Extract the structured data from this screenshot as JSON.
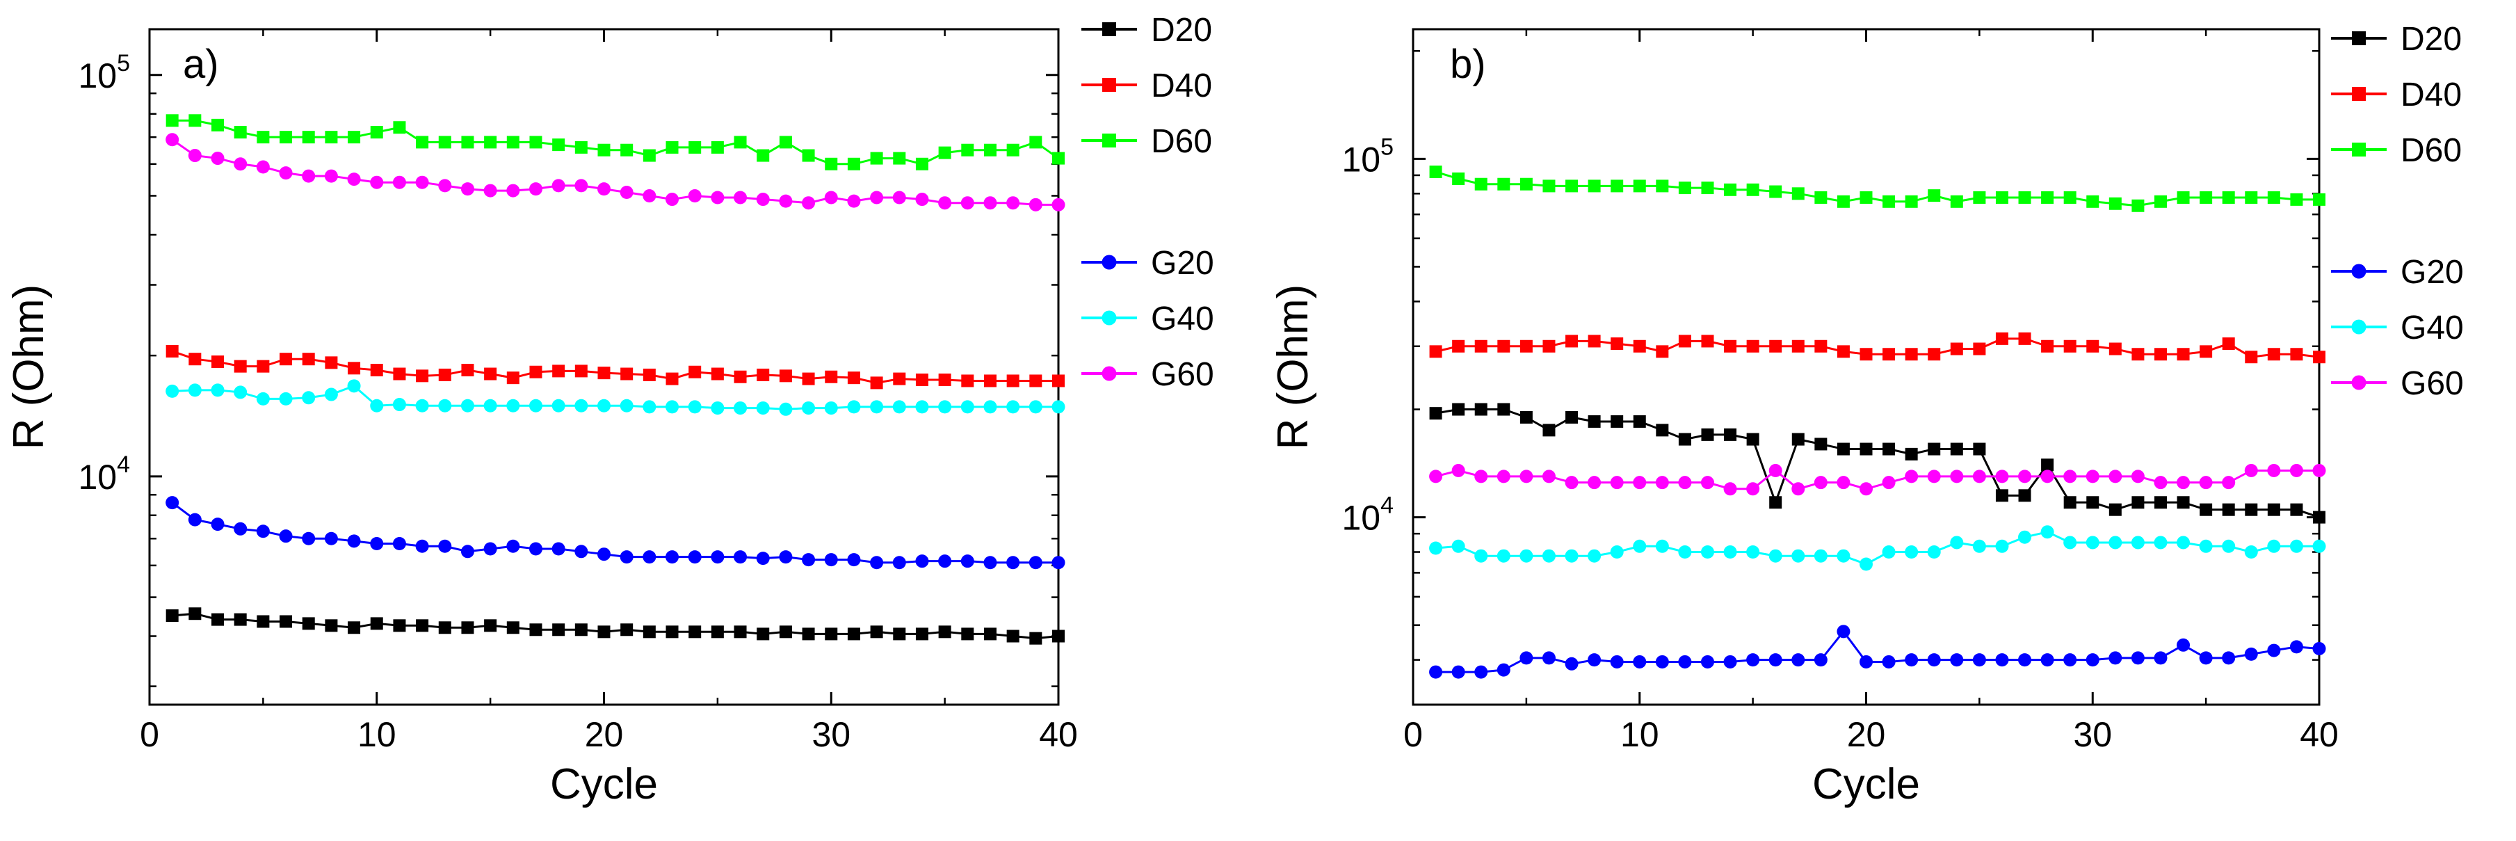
{
  "chart_data": [
    {
      "type": "line",
      "panel_label": "a)",
      "title": "",
      "xlabel": "Cycle",
      "ylabel": "R (Ohm)",
      "yscale": "log",
      "xlim": [
        0,
        40
      ],
      "ylim": [
        2700,
        130000
      ],
      "x_ticks": [
        0,
        10,
        20,
        30,
        40
      ],
      "x_tick_labels": [
        "0",
        "10",
        "20",
        "30",
        "40"
      ],
      "y_ticks": [
        10000,
        100000
      ],
      "y_tick_labels": [
        {
          "base": "10",
          "exp": "4"
        },
        {
          "base": "10",
          "exp": "5"
        }
      ],
      "legend_location": "outside-right",
      "x": [
        1,
        2,
        3,
        4,
        5,
        6,
        7,
        8,
        9,
        10,
        11,
        12,
        13,
        14,
        15,
        16,
        17,
        18,
        19,
        20,
        21,
        22,
        23,
        24,
        25,
        26,
        27,
        28,
        29,
        30,
        31,
        32,
        33,
        34,
        35,
        36,
        37,
        38,
        39,
        40
      ],
      "series": [
        {
          "name": "D20",
          "color": "#000000",
          "marker": "square",
          "values": [
            4500,
            4550,
            4400,
            4400,
            4350,
            4350,
            4300,
            4250,
            4200,
            4300,
            4250,
            4250,
            4200,
            4200,
            4250,
            4200,
            4150,
            4150,
            4150,
            4100,
            4150,
            4100,
            4100,
            4100,
            4100,
            4100,
            4050,
            4100,
            4050,
            4050,
            4050,
            4100,
            4050,
            4050,
            4100,
            4050,
            4050,
            4000,
            3950,
            4000
          ]
        },
        {
          "name": "D40",
          "color": "#ff0000",
          "marker": "square",
          "values": [
            20500,
            19600,
            19300,
            18800,
            18800,
            19600,
            19600,
            19200,
            18600,
            18400,
            18000,
            17800,
            17900,
            18400,
            18000,
            17600,
            18200,
            18300,
            18300,
            18100,
            18000,
            17900,
            17500,
            18200,
            18000,
            17700,
            17900,
            17800,
            17500,
            17700,
            17600,
            17100,
            17500,
            17400,
            17400,
            17300,
            17300,
            17300,
            17300,
            17300
          ]
        },
        {
          "name": "D60",
          "color": "#00ff00",
          "marker": "square",
          "values": [
            77000,
            77000,
            75000,
            72000,
            70000,
            70000,
            70000,
            70000,
            70000,
            72000,
            74000,
            68000,
            68000,
            68000,
            68000,
            68000,
            68000,
            67000,
            66000,
            65000,
            65000,
            63000,
            66000,
            66000,
            66000,
            68000,
            63000,
            68000,
            63000,
            60000,
            60000,
            62000,
            62000,
            60000,
            64000,
            65000,
            65000,
            65000,
            68000,
            62000
          ]
        },
        {
          "name": "G20",
          "color": "#0000ff",
          "marker": "circle",
          "values": [
            8600,
            7800,
            7600,
            7400,
            7300,
            7100,
            7000,
            7000,
            6900,
            6800,
            6800,
            6700,
            6700,
            6500,
            6600,
            6700,
            6600,
            6600,
            6500,
            6400,
            6300,
            6300,
            6300,
            6300,
            6300,
            6300,
            6250,
            6300,
            6200,
            6200,
            6200,
            6100,
            6100,
            6150,
            6150,
            6150,
            6100,
            6100,
            6100,
            6100
          ]
        },
        {
          "name": "G40",
          "color": "#00ffff",
          "marker": "circle",
          "values": [
            16300,
            16400,
            16400,
            16200,
            15600,
            15600,
            15700,
            16000,
            16800,
            15000,
            15100,
            15000,
            15000,
            15000,
            15000,
            15000,
            15000,
            15000,
            15000,
            15000,
            15000,
            14900,
            14900,
            14900,
            14800,
            14800,
            14800,
            14700,
            14800,
            14800,
            14900,
            14900,
            14900,
            14900,
            14900,
            14900,
            14900,
            14900,
            14900,
            14900
          ]
        },
        {
          "name": "G60",
          "color": "#ff00ff",
          "marker": "circle",
          "values": [
            69000,
            63000,
            62000,
            60000,
            59000,
            57000,
            56000,
            56000,
            55000,
            54000,
            54000,
            54000,
            53000,
            52000,
            51500,
            51500,
            52000,
            53000,
            53000,
            52000,
            51000,
            50000,
            49000,
            50000,
            49500,
            49500,
            49000,
            48500,
            48000,
            49500,
            48500,
            49500,
            49500,
            49000,
            48000,
            48000,
            48000,
            48000,
            47500,
            47500
          ]
        }
      ]
    },
    {
      "type": "line",
      "panel_label": "b)",
      "title": "",
      "xlabel": "Cycle",
      "ylabel": "R (Ohm)",
      "yscale": "log",
      "xlim": [
        0,
        40
      ],
      "ylim": [
        3000,
        230000
      ],
      "x_ticks": [
        0,
        10,
        20,
        30,
        40
      ],
      "x_tick_labels": [
        "0",
        "10",
        "20",
        "30",
        "40"
      ],
      "y_ticks": [
        10000,
        100000
      ],
      "y_tick_labels": [
        {
          "base": "10",
          "exp": "4"
        },
        {
          "base": "10",
          "exp": "5"
        }
      ],
      "legend_location": "outside-right",
      "x": [
        1,
        2,
        3,
        4,
        5,
        6,
        7,
        8,
        9,
        10,
        11,
        12,
        13,
        14,
        15,
        16,
        17,
        18,
        19,
        20,
        21,
        22,
        23,
        24,
        25,
        26,
        27,
        28,
        29,
        30,
        31,
        32,
        33,
        34,
        35,
        36,
        37,
        38,
        39,
        40
      ],
      "series": [
        {
          "name": "D20",
          "color": "#000000",
          "marker": "square",
          "values": [
            19500,
            20000,
            20000,
            20000,
            19000,
            17500,
            19000,
            18500,
            18500,
            18500,
            17500,
            16500,
            17000,
            17000,
            16500,
            11000,
            16500,
            16000,
            15500,
            15500,
            15500,
            15000,
            15500,
            15500,
            15500,
            11500,
            11500,
            14000,
            11000,
            11000,
            10500,
            11000,
            11000,
            11000,
            10500,
            10500,
            10500,
            10500,
            10500,
            10000
          ]
        },
        {
          "name": "D40",
          "color": "#ff0000",
          "marker": "square",
          "values": [
            29000,
            30000,
            30000,
            30000,
            30000,
            30000,
            31000,
            31000,
            30500,
            30000,
            29000,
            31000,
            31000,
            30000,
            30000,
            30000,
            30000,
            30000,
            29000,
            28500,
            28500,
            28500,
            28500,
            29500,
            29500,
            31500,
            31500,
            30000,
            30000,
            30000,
            29500,
            28500,
            28500,
            28500,
            29000,
            30500,
            28000,
            28500,
            28500,
            28000
          ]
        },
        {
          "name": "D60",
          "color": "#00ff00",
          "marker": "square",
          "values": [
            92000,
            88000,
            85000,
            85000,
            85000,
            84000,
            84000,
            84000,
            84000,
            84000,
            84000,
            83000,
            83000,
            82000,
            82000,
            81000,
            80000,
            78000,
            76000,
            78000,
            76000,
            76000,
            79000,
            76000,
            78000,
            78000,
            78000,
            78000,
            78000,
            76000,
            75000,
            74000,
            76000,
            78000,
            78000,
            78000,
            78000,
            78000,
            77000,
            77000
          ]
        },
        {
          "name": "G20",
          "color": "#0000ff",
          "marker": "circle",
          "values": [
            3700,
            3700,
            3700,
            3750,
            4050,
            4050,
            3900,
            4000,
            3950,
            3950,
            3950,
            3950,
            3950,
            3950,
            4000,
            4000,
            4000,
            4000,
            4800,
            3950,
            3950,
            4000,
            4000,
            4000,
            4000,
            4000,
            4000,
            4000,
            4000,
            4000,
            4050,
            4050,
            4050,
            4400,
            4050,
            4050,
            4150,
            4250,
            4350,
            4300
          ]
        },
        {
          "name": "G40",
          "color": "#00ffff",
          "marker": "circle",
          "values": [
            8200,
            8300,
            7800,
            7800,
            7800,
            7800,
            7800,
            7800,
            8000,
            8300,
            8300,
            8000,
            8000,
            8000,
            8000,
            7800,
            7800,
            7800,
            7800,
            7400,
            8000,
            8000,
            8000,
            8500,
            8300,
            8300,
            8800,
            9100,
            8500,
            8500,
            8500,
            8500,
            8500,
            8500,
            8300,
            8300,
            8000,
            8300,
            8300,
            8300
          ]
        },
        {
          "name": "G60",
          "color": "#ff00ff",
          "marker": "circle",
          "values": [
            13000,
            13500,
            13000,
            13000,
            13000,
            13000,
            12500,
            12500,
            12500,
            12500,
            12500,
            12500,
            12500,
            12000,
            12000,
            13500,
            12000,
            12500,
            12500,
            12000,
            12500,
            13000,
            13000,
            13000,
            13000,
            13000,
            13000,
            13000,
            13000,
            13000,
            13000,
            13000,
            12500,
            12500,
            12500,
            12500,
            13500,
            13500,
            13500,
            13500
          ]
        }
      ]
    }
  ]
}
